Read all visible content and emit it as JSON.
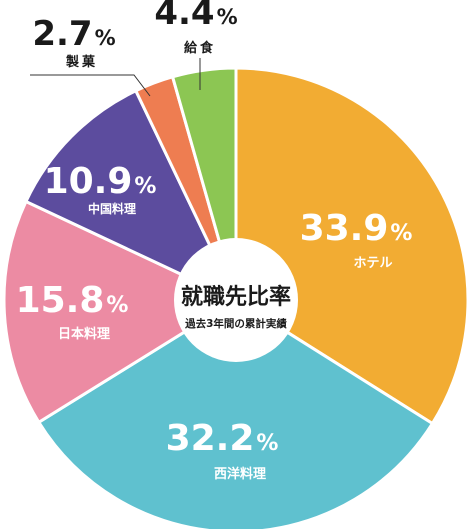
{
  "chart_data": {
    "type": "pie",
    "style": "donut",
    "center_title": "就職先比率",
    "center_subtitle": "過去3年間の累計実績",
    "unit": "%",
    "slices": [
      {
        "label": "ホテル",
        "value": 33.9,
        "value_text": "33.9",
        "color": "#F2AC33"
      },
      {
        "label": "西洋料理",
        "value": 32.2,
        "value_text": "32.2",
        "color": "#5FC1CF"
      },
      {
        "label": "日本料理",
        "value": 15.8,
        "value_text": "15.8",
        "color": "#EC8BA3"
      },
      {
        "label": "中国料理",
        "value": 10.9,
        "value_text": "10.9",
        "color": "#5C4C9E"
      },
      {
        "label": "製菓",
        "value": 2.7,
        "value_text": "2.7",
        "color": "#EE7D51"
      },
      {
        "label": "給食",
        "value": 4.4,
        "value_text": "4.4",
        "color": "#8CC653"
      }
    ]
  }
}
